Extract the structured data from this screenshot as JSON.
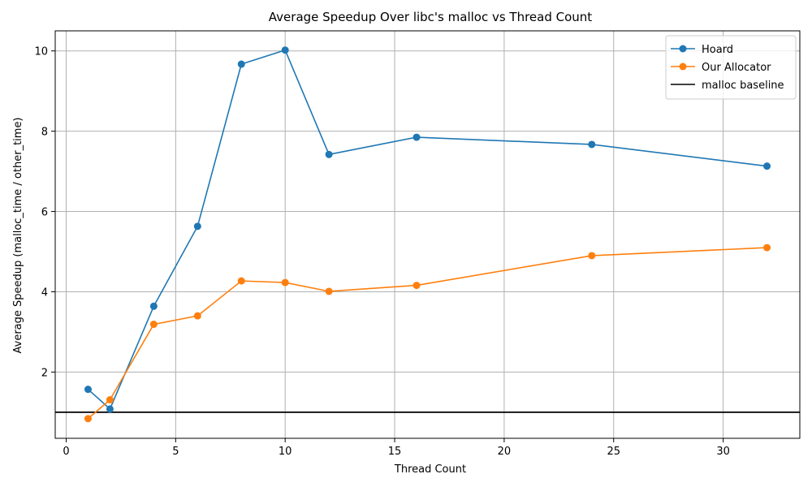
{
  "chart_data": {
    "type": "line",
    "title": "Average Speedup Over libc's malloc vs Thread Count",
    "xlabel": "Thread Count",
    "ylabel": "Average Speedup (malloc_time / other_time)",
    "xlim": [
      -0.5,
      33.5
    ],
    "ylim": [
      0.35,
      10.5
    ],
    "xticks": [
      0,
      5,
      10,
      15,
      20,
      25,
      30
    ],
    "yticks": [
      2,
      4,
      6,
      8,
      10
    ],
    "grid": true,
    "legend_position": "top-right",
    "series": [
      {
        "name": "Hoard",
        "color": "#1f77b4",
        "marker": "circle",
        "x": [
          1,
          2,
          4,
          6,
          8,
          10,
          12,
          16,
          24,
          32
        ],
        "y": [
          1.57,
          1.08,
          3.64,
          5.63,
          9.67,
          10.02,
          7.42,
          7.85,
          7.67,
          7.13
        ]
      },
      {
        "name": "Our Allocator",
        "color": "#ff7f0e",
        "marker": "circle",
        "x": [
          1,
          2,
          4,
          6,
          8,
          10,
          12,
          16,
          24,
          32
        ],
        "y": [
          0.84,
          1.31,
          3.19,
          3.4,
          4.27,
          4.23,
          4.01,
          4.16,
          4.9,
          5.1
        ]
      }
    ],
    "hlines": [
      {
        "name": "malloc baseline",
        "y": 1.0,
        "color": "#000000"
      }
    ]
  }
}
